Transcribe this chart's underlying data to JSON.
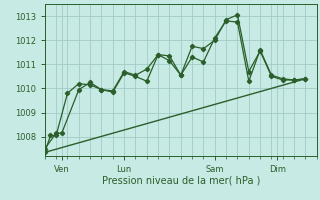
{
  "xlabel": "Pression niveau de la mer( hPa )",
  "ylim": [
    1007.2,
    1013.5
  ],
  "xlim": [
    0,
    24
  ],
  "yticks": [
    1008,
    1009,
    1010,
    1011,
    1012,
    1013
  ],
  "xtick_positions": [
    1.5,
    7,
    15,
    20.5
  ],
  "xtick_labels": [
    "Ven",
    "Lun",
    "Sam",
    "Dim"
  ],
  "bg_color": "#c8eae4",
  "grid_color": "#a0ccc4",
  "line_color": "#2a5e2a",
  "line1_x": [
    0,
    1,
    1.5,
    3,
    4,
    5,
    6,
    7,
    8,
    9,
    10,
    11,
    12,
    13,
    14,
    15,
    16,
    17,
    18,
    19,
    20,
    21,
    22,
    23
  ],
  "line1_y": [
    1007.5,
    1008.15,
    1008.15,
    1009.95,
    1010.25,
    1009.95,
    1009.85,
    1010.65,
    1010.5,
    1010.3,
    1011.4,
    1011.15,
    1010.55,
    1011.3,
    1011.1,
    1012.1,
    1012.8,
    1012.75,
    1010.3,
    1011.6,
    1010.55,
    1010.4,
    1010.35,
    1010.4
  ],
  "line2_x": [
    0,
    0.5,
    1,
    2,
    3,
    4,
    5,
    6,
    7,
    8,
    9,
    10,
    11,
    12,
    13,
    14,
    15,
    16,
    17,
    18,
    19,
    20,
    21,
    22,
    23
  ],
  "line2_y": [
    1007.35,
    1008.05,
    1008.05,
    1009.8,
    1010.2,
    1010.15,
    1009.95,
    1009.9,
    1010.7,
    1010.55,
    1010.8,
    1011.4,
    1011.35,
    1010.55,
    1011.75,
    1011.65,
    1012.0,
    1012.85,
    1013.05,
    1010.7,
    1011.55,
    1010.5,
    1010.35,
    1010.35,
    1010.4
  ],
  "line3_x": [
    0,
    23
  ],
  "line3_y": [
    1007.35,
    1010.4
  ],
  "minor_xticks": [
    0,
    1,
    2,
    3,
    4,
    5,
    6,
    7,
    8,
    9,
    10,
    11,
    12,
    13,
    14,
    15,
    16,
    17,
    18,
    19,
    20,
    21,
    22,
    23,
    24
  ]
}
